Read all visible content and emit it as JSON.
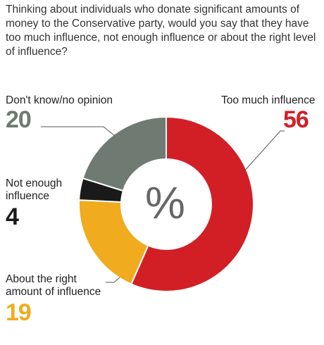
{
  "question": "Thinking about individuals who donate significant amounts of money to the Conservative party, would you say that they have too much influence, not enough influence or about the right level of influence?",
  "center_symbol": "%",
  "chart_data": {
    "type": "pie",
    "donut": true,
    "title": "Thinking about individuals who donate significant amounts of money to the Conservative party, would you say that they have too much influence, not enough influence or about the right level of influence?",
    "unit": "%",
    "slices": [
      {
        "label": "Too much influence",
        "value": 56,
        "color": "#d21f26"
      },
      {
        "label": "About the right amount of influence",
        "value": 19,
        "color": "#f0ab1e"
      },
      {
        "label": "Not enough influence",
        "value": 4,
        "color": "#1a1a1a"
      },
      {
        "label": "Don't know/no opinion",
        "value": 20,
        "color": "#6e7a72"
      }
    ]
  },
  "labels": {
    "too_much": {
      "text": "Too much influence",
      "value": "56"
    },
    "dont_know": {
      "text": "Don't know/no opinion",
      "value": "20"
    },
    "not_enough_line1": "Not enough",
    "not_enough_line2": "influence",
    "not_enough_value": "4",
    "about_right_line1": "About the right",
    "about_right_line2": "amount of influence",
    "about_right_value": "19"
  }
}
